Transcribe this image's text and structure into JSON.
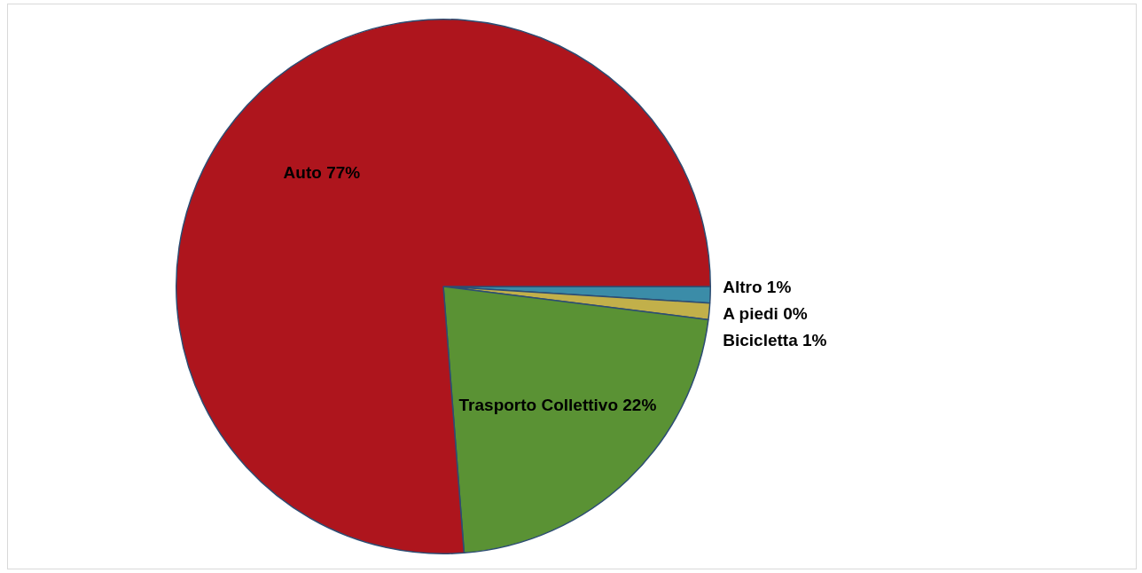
{
  "chart_data": {
    "type": "pie",
    "categories": [
      "Altro",
      "A piedi",
      "Bicicletta",
      "Trasporto Collettivo",
      "Auto"
    ],
    "values": [
      1,
      0,
      1,
      22,
      77
    ],
    "value_labels": [
      "1%",
      "0%",
      "1%",
      "22%",
      "77%"
    ],
    "colors": [
      "#3b8ca8",
      "#a9b36a",
      "#c2b04a",
      "#5a9234",
      "#ae151d"
    ],
    "legend": false
  }
}
